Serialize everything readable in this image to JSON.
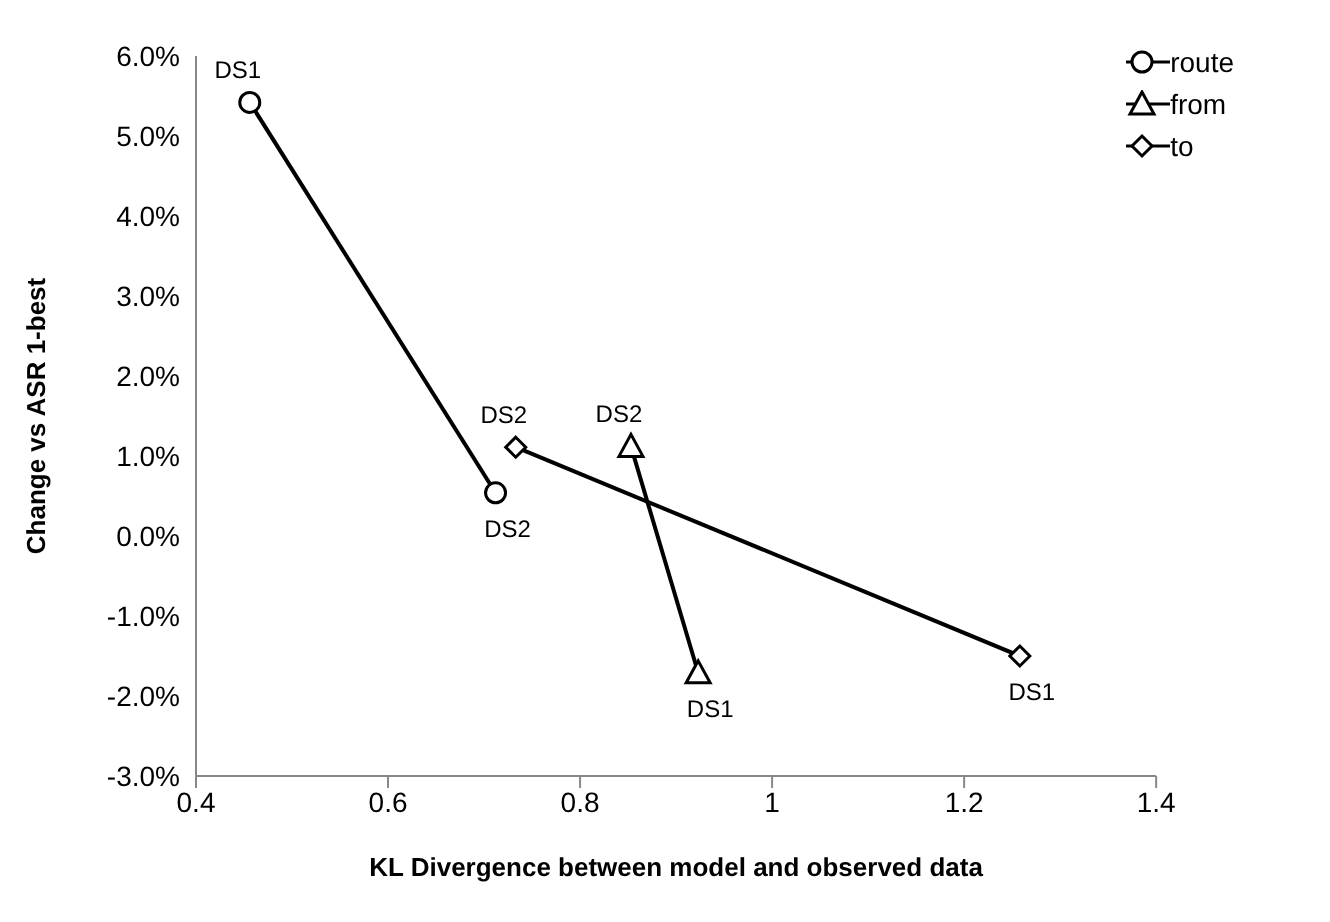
{
  "chart_data": {
    "type": "line",
    "xlabel": "KL Divergence between model and observed data",
    "ylabel": "Change vs ASR 1-best",
    "series": [
      {
        "name": "route",
        "color": "#000000",
        "marker": "circle",
        "x": [
          0.456,
          0.712
        ],
        "values": [
          5.42,
          0.54
        ]
      },
      {
        "name": "from",
        "color": "#000000",
        "marker": "triangle",
        "x": [
          0.923,
          0.853
        ],
        "values": [
          -1.71,
          1.12
        ]
      },
      {
        "name": "to",
        "color": "#000000",
        "marker": "diamond",
        "x": [
          1.258,
          0.733
        ],
        "values": [
          -1.5,
          1.11
        ]
      }
    ],
    "annotations": [
      {
        "text": "DS1",
        "x": 0.456,
        "y": 5.42
      },
      {
        "text": "DS2",
        "x": 0.712,
        "y": 0.54
      },
      {
        "text": "DS1",
        "x": 0.923,
        "y": -1.71
      },
      {
        "text": "DS2",
        "x": 0.853,
        "y": 1.12
      },
      {
        "text": "DS1",
        "x": 1.258,
        "y": -1.5
      },
      {
        "text": "DS2",
        "x": 0.733,
        "y": 1.11
      }
    ],
    "xlim": [
      0.4,
      1.4
    ],
    "xticks": [
      0.4,
      0.6,
      0.8,
      1,
      1.2,
      1.4
    ],
    "ylim": [
      -3,
      6
    ],
    "yticks": [
      {
        "value": -3,
        "label": "-3.0%"
      },
      {
        "value": -2,
        "label": "-2.0%"
      },
      {
        "value": -1,
        "label": "-1.0%"
      },
      {
        "value": 0,
        "label": "0.0%"
      },
      {
        "value": 1,
        "label": "1.0%"
      },
      {
        "value": 2,
        "label": "2.0%"
      },
      {
        "value": 3,
        "label": "3.0%"
      },
      {
        "value": 4,
        "label": "4.0%"
      },
      {
        "value": 5,
        "label": "5.0%"
      },
      {
        "value": 6,
        "label": "6.0%"
      }
    ],
    "grid": false,
    "legend": "top right",
    "line_style": "solid"
  }
}
